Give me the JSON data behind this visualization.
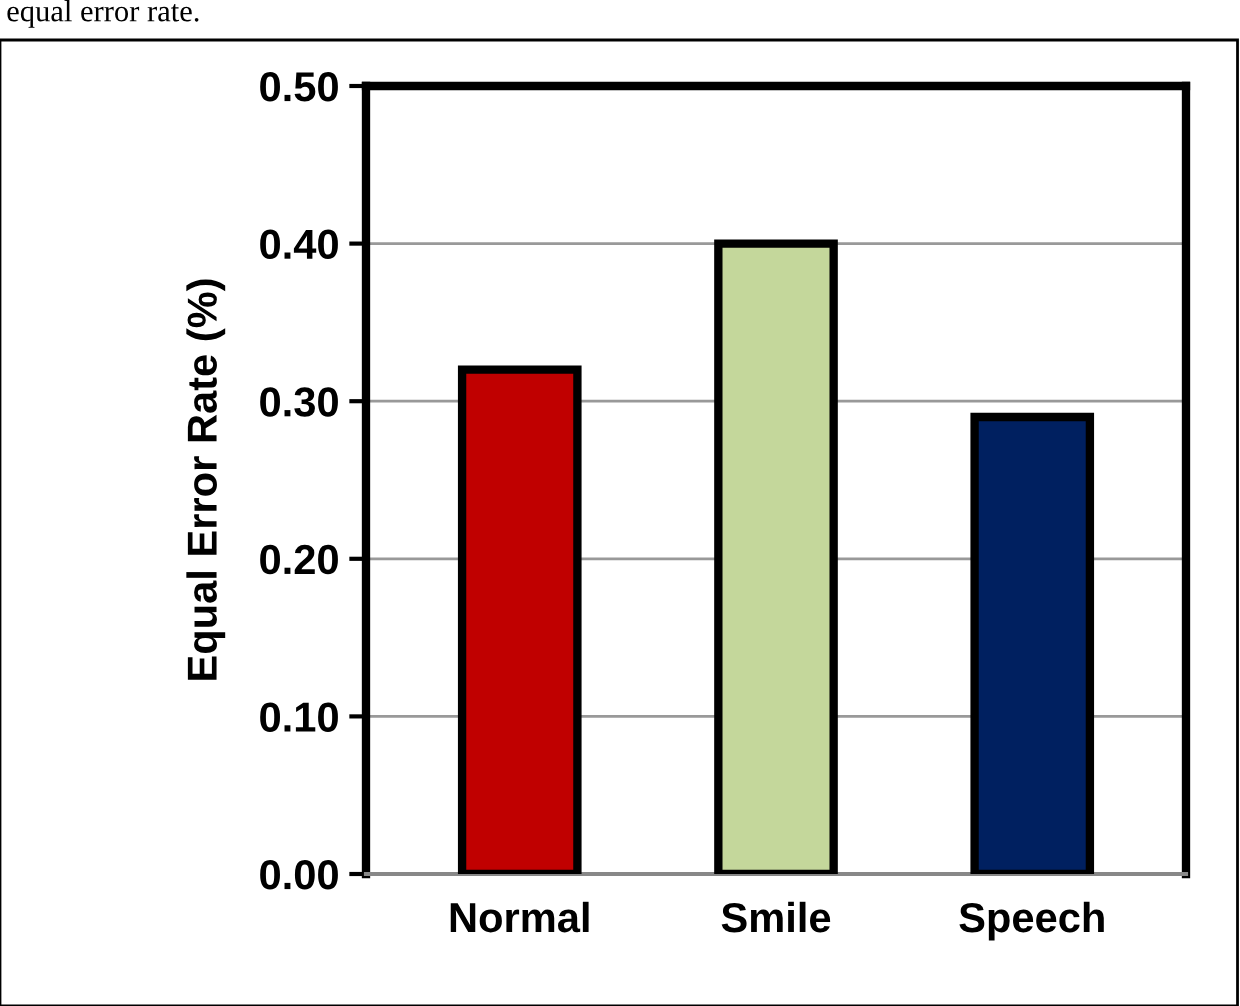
{
  "chart_data": {
    "type": "bar",
    "ylabel": "Equal Error Rate (%)",
    "annotations": [
      "equal error rate."
    ],
    "categories": [
      "Normal",
      "Smile",
      "Speech"
    ],
    "values": [
      0.32,
      0.4,
      0.29
    ],
    "colors": [
      "#c00000",
      "#c4d79b",
      "#002060"
    ],
    "ylim": [
      0,
      0.5
    ],
    "yticks": [
      {
        "value": 0,
        "label": "0.00"
      },
      {
        "value": 0.1,
        "label": "0.10"
      },
      {
        "value": 0.2,
        "label": "0.20"
      },
      {
        "value": 0.3,
        "label": "0.30"
      },
      {
        "value": 0.4,
        "label": "0.40"
      },
      {
        "value": 0.5,
        "label": "0.50"
      }
    ],
    "grid": "y",
    "legend": false
  }
}
